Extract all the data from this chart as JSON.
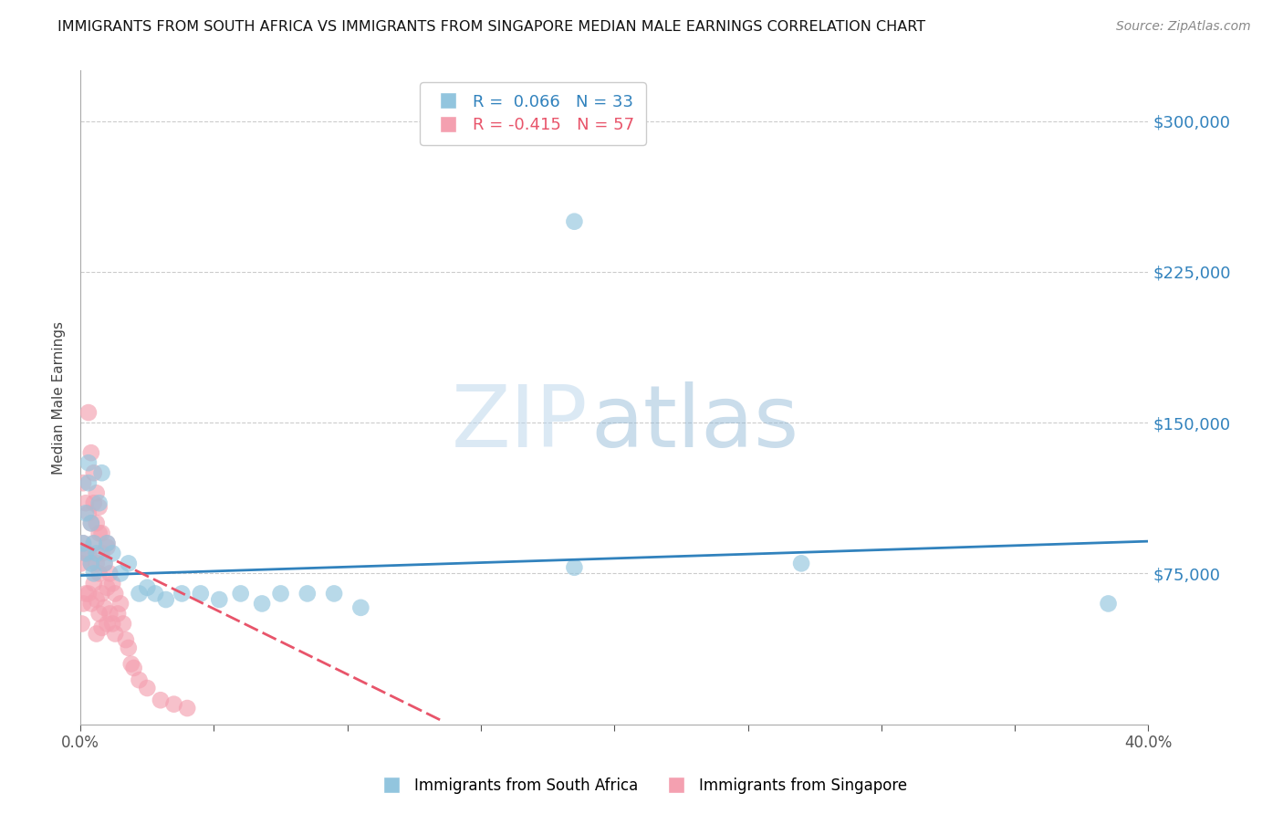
{
  "title": "IMMIGRANTS FROM SOUTH AFRICA VS IMMIGRANTS FROM SINGAPORE MEDIAN MALE EARNINGS CORRELATION CHART",
  "source": "Source: ZipAtlas.com",
  "ylabel": "Median Male Earnings",
  "R_blue": 0.066,
  "N_blue": 33,
  "R_pink": -0.415,
  "N_pink": 57,
  "blue_color": "#92c5de",
  "pink_color": "#f4a0b0",
  "blue_line_color": "#3182bd",
  "pink_line_color": "#e8546a",
  "legend_blue": "Immigrants from South Africa",
  "legend_pink": "Immigrants from Singapore",
  "xlim": [
    0,
    0.4
  ],
  "ylim": [
    0,
    325000
  ],
  "yticks": [
    0,
    75000,
    150000,
    225000,
    300000
  ],
  "xticks": [
    0.0,
    0.05,
    0.1,
    0.15,
    0.2,
    0.25,
    0.3,
    0.35,
    0.4
  ],
  "blue_x": [
    0.001,
    0.002,
    0.002,
    0.003,
    0.003,
    0.004,
    0.004,
    0.005,
    0.005,
    0.006,
    0.007,
    0.008,
    0.009,
    0.01,
    0.012,
    0.015,
    0.018,
    0.022,
    0.025,
    0.028,
    0.032,
    0.038,
    0.045,
    0.052,
    0.06,
    0.068,
    0.075,
    0.085,
    0.095,
    0.105,
    0.185,
    0.27,
    0.385
  ],
  "blue_y": [
    90000,
    85000,
    105000,
    130000,
    120000,
    100000,
    80000,
    90000,
    75000,
    85000,
    110000,
    125000,
    80000,
    90000,
    85000,
    75000,
    80000,
    65000,
    68000,
    65000,
    62000,
    65000,
    65000,
    62000,
    65000,
    60000,
    65000,
    65000,
    65000,
    58000,
    78000,
    80000,
    60000
  ],
  "pink_x": [
    0.0003,
    0.0005,
    0.001,
    0.001,
    0.001,
    0.002,
    0.002,
    0.002,
    0.003,
    0.003,
    0.003,
    0.004,
    0.004,
    0.004,
    0.005,
    0.005,
    0.005,
    0.006,
    0.006,
    0.006,
    0.006,
    0.007,
    0.007,
    0.007,
    0.008,
    0.008,
    0.008,
    0.009,
    0.009,
    0.01,
    0.01,
    0.01,
    0.011,
    0.011,
    0.012,
    0.012,
    0.013,
    0.013,
    0.014,
    0.015,
    0.016,
    0.017,
    0.018,
    0.019,
    0.02,
    0.022,
    0.025,
    0.03,
    0.035,
    0.04,
    0.003,
    0.004,
    0.005,
    0.006,
    0.007,
    0.008,
    0.01
  ],
  "pink_y": [
    80000,
    50000,
    120000,
    90000,
    60000,
    110000,
    85000,
    65000,
    105000,
    85000,
    65000,
    100000,
    80000,
    60000,
    110000,
    90000,
    70000,
    100000,
    80000,
    62000,
    45000,
    95000,
    75000,
    55000,
    85000,
    65000,
    48000,
    80000,
    58000,
    90000,
    68000,
    50000,
    75000,
    55000,
    70000,
    50000,
    65000,
    45000,
    55000,
    60000,
    50000,
    42000,
    38000,
    30000,
    28000,
    22000,
    18000,
    12000,
    10000,
    8000,
    155000,
    135000,
    125000,
    115000,
    108000,
    95000,
    88000
  ],
  "watermark_zip": "ZIP",
  "watermark_atlas": "atlas",
  "title_fontsize": 11.5,
  "source_fontsize": 10,
  "axis_label_fontsize": 11,
  "tick_fontsize": 11
}
